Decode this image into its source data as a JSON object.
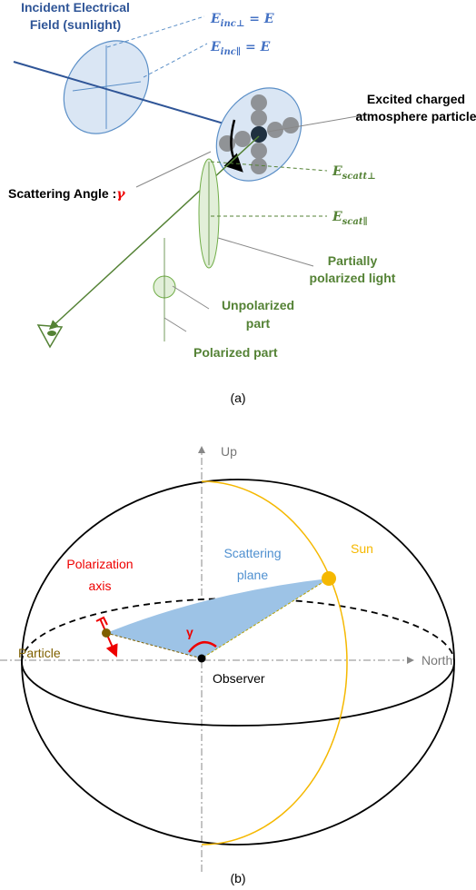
{
  "panel_a": {
    "incident_label": [
      "Incident Electrical",
      "Field (sunlight)"
    ],
    "e_inc_perp": {
      "main": "E",
      "sub": "inc⊥",
      "rest": " = E"
    },
    "e_inc_par": {
      "main": "E",
      "sub": "inc∥",
      "rest": " = E"
    },
    "particle_label": [
      "Excited charged",
      "atmosphere particle"
    ],
    "angle_label": {
      "text": "Scattering Angle :",
      "symbol": "γ"
    },
    "e_scatt_perp": {
      "main": "E",
      "sub": "scatt⊥"
    },
    "e_scat_par": {
      "main": "E",
      "sub": "scat∥"
    },
    "partial_label": [
      "Partially",
      "polarized light"
    ],
    "unpolarized_label": [
      "Unpolarized",
      "part"
    ],
    "polarized_label": "Polarized part",
    "caption": "(a)"
  },
  "panel_b": {
    "up": "Up",
    "north": "North",
    "sun": "Sun",
    "plane_label": [
      "Scattering",
      "plane"
    ],
    "polarization_label": [
      "Polarization",
      "axis"
    ],
    "particle": "Particle",
    "observer": "Observer",
    "gamma": "γ",
    "caption": "(b)"
  }
}
